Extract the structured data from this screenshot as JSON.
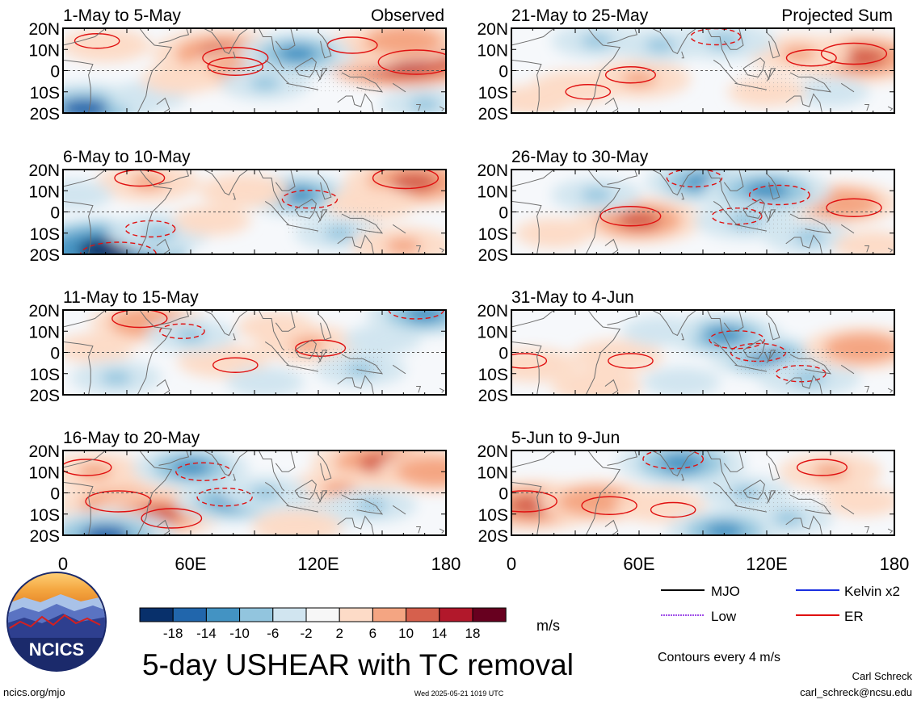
{
  "figure": {
    "title": "5-day USHEAR with TC removal",
    "units": "m/s",
    "contour_note": "Contours every 4 m/s",
    "author_name": "Carl Schreck",
    "author_email": "carl_schreck@ncsu.edu",
    "site": "ncics.org/mjo",
    "timestamp": "Wed 2025-05-21 1019 UTC",
    "logo_text": "NCICS"
  },
  "columns": {
    "left_label": "Observed",
    "right_label": "Projected Sum"
  },
  "colors": {
    "ocean_base": "#f6f8fb",
    "coast": "#6e6e6e",
    "legend_mjo": "#000000",
    "legend_kelvin": "#1a2ee0",
    "legend_low": "#a04ee8",
    "legend_er": "#e01010"
  },
  "chart_data": {
    "type": "heatmap",
    "variable": "5-day USHEAR with TC removal",
    "units": "m/s",
    "xlim": [
      0,
      180
    ],
    "ylim": [
      -20,
      20
    ],
    "x_ticks": [
      "0",
      "60E",
      "120E",
      "180"
    ],
    "y_ticks": [
      "20N",
      "10N",
      "0",
      "10S",
      "20S"
    ],
    "colorbar": {
      "levels": [
        -18,
        -14,
        -10,
        -6,
        -2,
        2,
        6,
        10,
        14,
        18
      ],
      "labels": [
        "-18",
        "-14",
        "-10",
        "-6",
        "-2",
        "2",
        "6",
        "10",
        "14",
        "18"
      ],
      "colors": [
        "#08306b",
        "#2166ac",
        "#4393c3",
        "#92c5de",
        "#d1e5f0",
        "#f7f7f7",
        "#fddbc7",
        "#f4a582",
        "#d6604d",
        "#b2182b",
        "#67001f"
      ]
    },
    "contour_interval": 4,
    "legend": [
      {
        "name": "MJO",
        "color": "#000000"
      },
      {
        "name": "Kelvin x2",
        "color": "#1a2ee0"
      },
      {
        "name": "Low",
        "color": "#a04ee8"
      },
      {
        "name": "ER",
        "color": "#e01010"
      }
    ],
    "panels": [
      {
        "period": "1-May to 5-May",
        "column": "Observed",
        "anomalies": [
          [
            20,
            12,
            6
          ],
          [
            75,
            8,
            14
          ],
          [
            85,
            0,
            10
          ],
          [
            160,
            6,
            18
          ],
          [
            140,
            10,
            8
          ],
          [
            110,
            8,
            -10
          ],
          [
            95,
            -6,
            -6
          ],
          [
            10,
            -18,
            -14
          ],
          [
            40,
            -12,
            -4
          ],
          [
            170,
            -16,
            -6
          ],
          [
            160,
            14,
            10
          ],
          [
            55,
            -4,
            4
          ]
        ]
      },
      {
        "period": "6-May to 10-May",
        "column": "Observed",
        "anomalies": [
          [
            40,
            14,
            8
          ],
          [
            20,
            -18,
            -18
          ],
          [
            45,
            -10,
            -8
          ],
          [
            110,
            8,
            -10
          ],
          [
            165,
            14,
            14
          ],
          [
            145,
            4,
            6
          ],
          [
            85,
            10,
            6
          ],
          [
            130,
            -10,
            -6
          ],
          [
            160,
            -16,
            8
          ],
          [
            70,
            -4,
            4
          ],
          [
            5,
            8,
            -4
          ]
        ]
      },
      {
        "period": "11-May to 15-May",
        "column": "Observed",
        "anomalies": [
          [
            40,
            14,
            10
          ],
          [
            15,
            2,
            4
          ],
          [
            75,
            -4,
            6
          ],
          [
            60,
            8,
            -6
          ],
          [
            115,
            4,
            8
          ],
          [
            170,
            18,
            -10
          ],
          [
            140,
            -8,
            -6
          ],
          [
            150,
            6,
            -4
          ],
          [
            95,
            -14,
            -4
          ],
          [
            25,
            -12,
            -6
          ],
          [
            100,
            12,
            4
          ]
        ]
      },
      {
        "period": "16-May to 20-May",
        "column": "Observed",
        "anomalies": [
          [
            30,
            -6,
            14
          ],
          [
            45,
            -10,
            12
          ],
          [
            15,
            10,
            8
          ],
          [
            60,
            12,
            -10
          ],
          [
            80,
            -4,
            -10
          ],
          [
            150,
            14,
            14
          ],
          [
            130,
            2,
            8
          ],
          [
            20,
            -20,
            -14
          ],
          [
            95,
            0,
            -6
          ],
          [
            115,
            -12,
            -6
          ],
          [
            145,
            -6,
            -6
          ],
          [
            175,
            10,
            10
          ],
          [
            110,
            -16,
            6
          ]
        ]
      },
      {
        "period": "21-May to 25-May",
        "column": "Projected Sum",
        "anomalies": [
          [
            165,
            6,
            14
          ],
          [
            135,
            8,
            8
          ],
          [
            60,
            -4,
            8
          ],
          [
            30,
            -8,
            6
          ],
          [
            100,
            14,
            -8
          ],
          [
            70,
            12,
            -6
          ],
          [
            150,
            -10,
            -4
          ],
          [
            40,
            14,
            -6
          ],
          [
            120,
            -10,
            4
          ],
          [
            10,
            -14,
            4
          ]
        ]
      },
      {
        "period": "26-May to 30-May",
        "column": "Projected Sum",
        "anomalies": [
          [
            60,
            -4,
            12
          ],
          [
            155,
            4,
            10
          ],
          [
            90,
            14,
            -10
          ],
          [
            120,
            10,
            -12
          ],
          [
            110,
            -4,
            -8
          ],
          [
            140,
            -12,
            -6
          ],
          [
            20,
            -10,
            4
          ],
          [
            40,
            8,
            -6
          ],
          [
            170,
            -16,
            4
          ]
        ]
      },
      {
        "period": "31-May to 4-Jun",
        "column": "Projected Sum",
        "anomalies": [
          [
            10,
            -6,
            6
          ],
          [
            50,
            -2,
            6
          ],
          [
            120,
            -2,
            -10
          ],
          [
            100,
            8,
            -10
          ],
          [
            140,
            -12,
            -8
          ],
          [
            165,
            2,
            10
          ],
          [
            40,
            -16,
            6
          ],
          [
            70,
            10,
            -4
          ],
          [
            80,
            -14,
            -4
          ]
        ]
      },
      {
        "period": "5-Jun to 9-Jun",
        "column": "Projected Sum",
        "anomalies": [
          [
            10,
            -6,
            14
          ],
          [
            40,
            -4,
            10
          ],
          [
            80,
            14,
            -12
          ],
          [
            70,
            -6,
            6
          ],
          [
            150,
            10,
            8
          ],
          [
            110,
            0,
            -6
          ],
          [
            130,
            -12,
            -6
          ],
          [
            100,
            -18,
            -10
          ],
          [
            165,
            -4,
            4
          ]
        ]
      }
    ]
  }
}
